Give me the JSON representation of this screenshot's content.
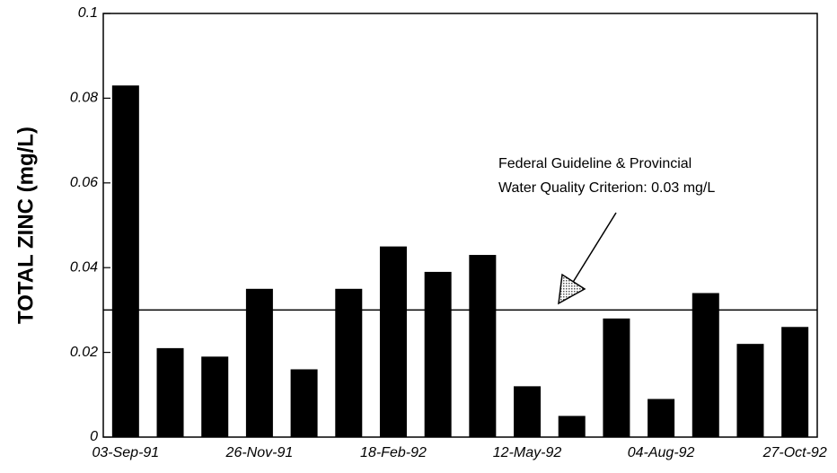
{
  "chart_data": {
    "type": "bar",
    "categories": [
      "03-Sep-91",
      null,
      null,
      "26-Nov-91",
      null,
      null,
      "18-Feb-92",
      null,
      null,
      "12-May-92",
      null,
      null,
      "04-Aug-92",
      null,
      null,
      "27-Oct-92"
    ],
    "values": [
      0.083,
      0.021,
      0.019,
      0.035,
      0.016,
      0.035,
      0.045,
      0.039,
      0.043,
      0.012,
      0.005,
      0.028,
      0.009,
      0.034,
      0.022,
      0.026
    ],
    "color": "#000000",
    "y_label": "TOTAL ZINC (mg/L)",
    "ylim": [
      0,
      0.1
    ],
    "yticks": [
      0,
      0.02,
      0.04,
      0.06,
      0.08,
      0.1
    ],
    "grid": false,
    "reference_line": 0.03,
    "annotation": [
      "Federal Guideline & Provincial",
      "Water Quality Criterion:  0.03 mg/L"
    ]
  }
}
